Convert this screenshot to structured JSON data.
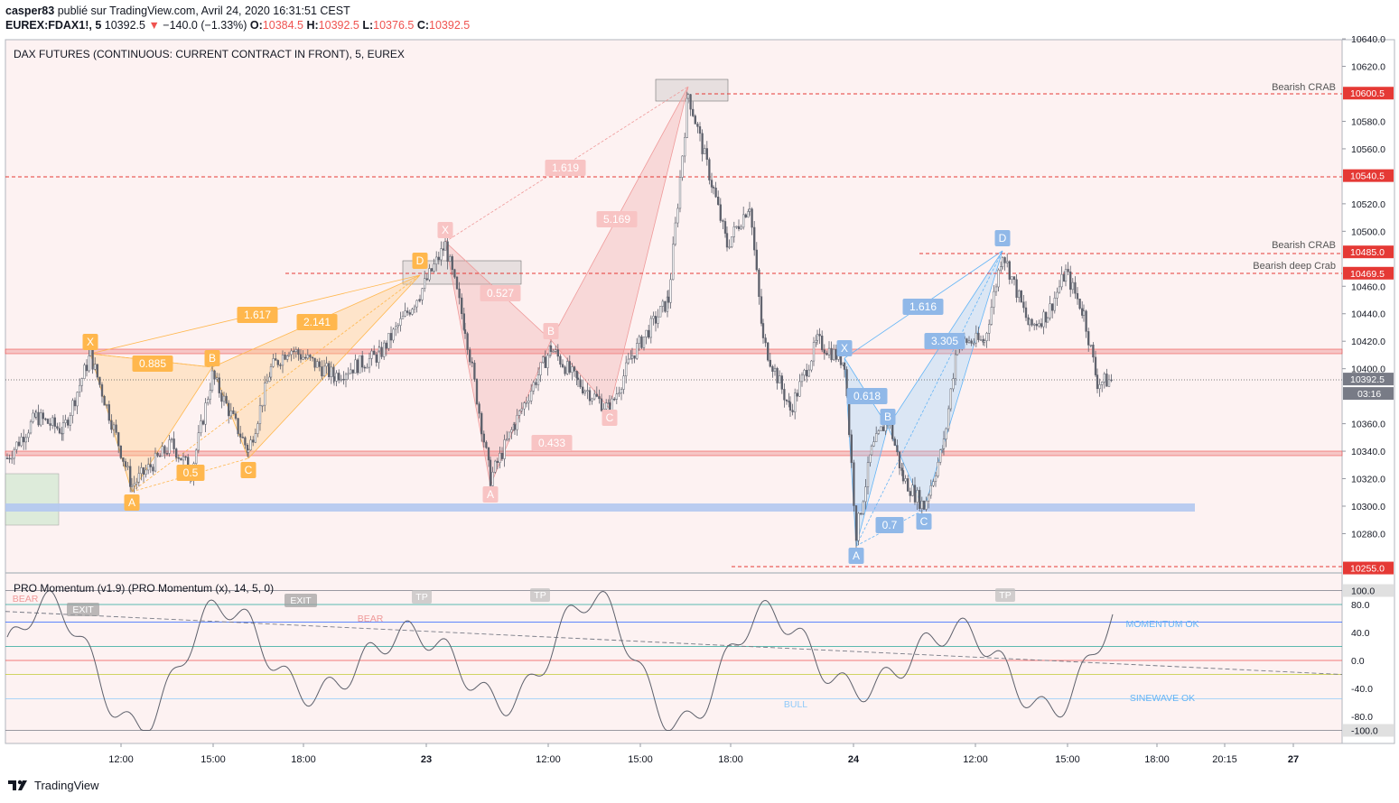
{
  "header": {
    "author": "casper83",
    "published": "publié sur TradingView.com, Avril 24, 2020 16:31:51 CEST",
    "symbol": "EUREX:FDAX1!, 5",
    "last": "10392.5",
    "change": "−140.0 (−1.33%)",
    "o_label": "O:",
    "o": "10384.5",
    "h_label": "H:",
    "h": "10392.5",
    "l_label": "L:",
    "l": "10376.5",
    "c_label": "C:",
    "c": "10392.5"
  },
  "chart_data": [
    {
      "type": "candlestick",
      "title": "DAX FUTURES (CONTINUOUS: CURRENT CONTRACT IN FRONT), 5, EUREX",
      "ylim": [
        10240,
        10645
      ],
      "y_ticks": [
        "10640.0",
        "10620.0",
        "10580.0",
        "10560.0",
        "10520.0",
        "10500.0",
        "10460.0",
        "10440.0",
        "10420.0",
        "10400.0",
        "10360.0",
        "10340.0",
        "10320.0",
        "10300.0",
        "10280.0"
      ],
      "x_ticks": [
        "12:00",
        "15:00",
        "18:00",
        "23",
        "12:00",
        "15:00",
        "18:00",
        "24",
        "12:00",
        "15:00",
        "18:00",
        "20:15",
        "27"
      ],
      "price_labels": [
        {
          "value": 10600.5,
          "text": "10600.5",
          "color": "#e53935"
        },
        {
          "value": 10540.5,
          "text": "10540.5",
          "color": "#e53935"
        },
        {
          "value": 10485.0,
          "text": "10485.0",
          "color": "#e53935"
        },
        {
          "value": 10469.5,
          "text": "10469.5",
          "color": "#e53935"
        },
        {
          "value": 10392.5,
          "text": "10392.5",
          "color": "#787b86"
        },
        {
          "value": 10255.0,
          "text": "10255.0",
          "color": "#e53935"
        }
      ],
      "countdown": "03:16",
      "annotations": [
        "Bearish CRAB",
        "Bearish CRAB",
        "Bearish deep Crab"
      ],
      "pattern_1_labels": [
        "X",
        "A",
        "B",
        "C",
        "D",
        "0.885",
        "1.617",
        "2.141",
        "0.5"
      ],
      "pattern_2_labels": [
        "X",
        "A",
        "B",
        "C",
        "0.527",
        "0.433",
        "1.619",
        "5.169"
      ],
      "pattern_3_labels": [
        "X",
        "A",
        "B",
        "C",
        "D",
        "0.618",
        "0.7",
        "1.616",
        "3.305"
      ]
    },
    {
      "type": "line",
      "title": "PRO Momentum (v1.9) (PRO Momentum (x), 14, 5, 0)",
      "ylim": [
        -100,
        100
      ],
      "y_ticks": [
        "100.0",
        "80.0",
        "40.0",
        "0.0",
        "-40.0",
        "-80.0",
        "-100.0"
      ],
      "labels": [
        "BEAR",
        "BEAR",
        "EXIT",
        "EXIT",
        "TP",
        "TP",
        "TP",
        "BULL",
        "MOMENTUM OK",
        "SINEWAVE OK"
      ]
    }
  ],
  "footer": {
    "brand": "TradingView"
  },
  "colors": {
    "up": "#26a69a",
    "down": "#ef5350",
    "orange": "#ffb74d",
    "pink": "#ef9a9a",
    "blue": "#90caf9"
  }
}
